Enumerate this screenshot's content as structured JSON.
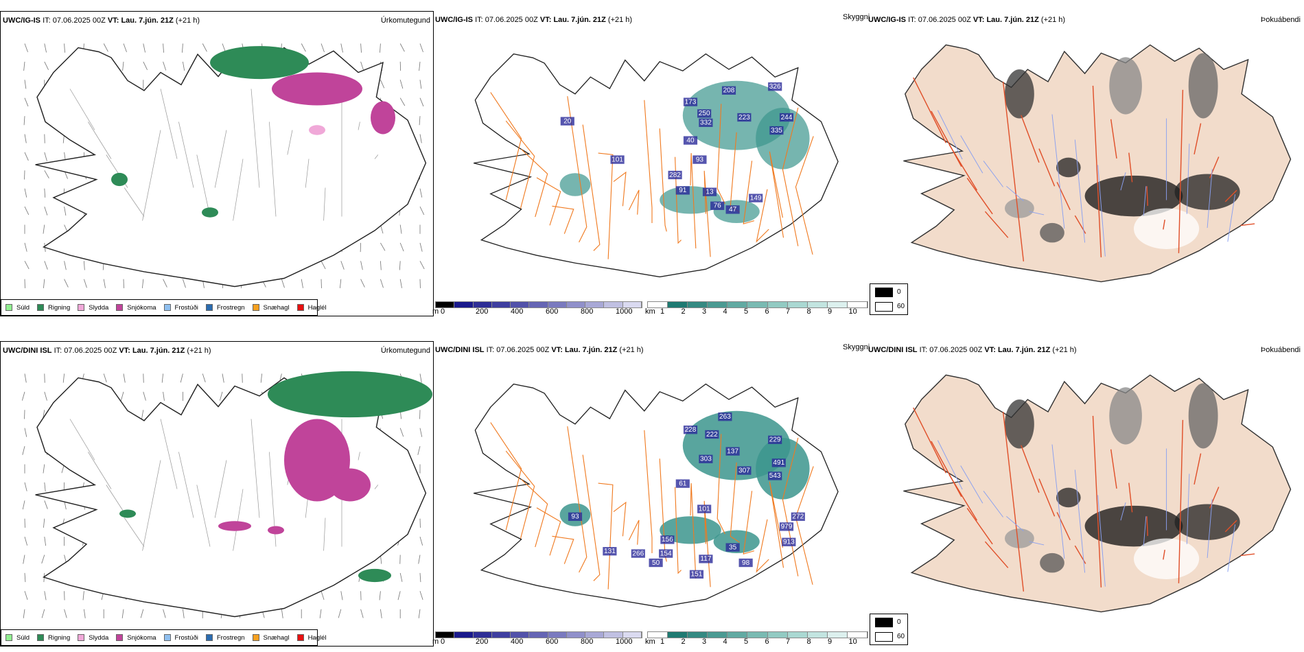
{
  "rows": [
    {
      "model": "UWC/IG-IS",
      "it_label": "IT:",
      "it": "07.06.2025 00Z",
      "vt_label": "VT:",
      "vt": "Lau. 7.jún. 21Z",
      "lead": "(+21 h)",
      "labels2": [
        "173",
        "208",
        "326",
        "250",
        "332",
        "223",
        "244",
        "335",
        "101",
        "93",
        "91",
        "13",
        "76",
        "47",
        "149",
        "20",
        "40",
        "282"
      ]
    },
    {
      "model": "UWC/DINI ISL",
      "it_label": "IT:",
      "it": "07.06.2025 00Z",
      "vt_label": "VT:",
      "vt": "Lau. 7.jún. 21Z",
      "lead": "(+21 h)",
      "labels2": [
        "263",
        "228",
        "222",
        "229",
        "137",
        "303",
        "491",
        "307",
        "543",
        "61",
        "101",
        "272",
        "979",
        "131",
        "156",
        "266",
        "154",
        "50",
        "117",
        "151",
        "98",
        "913",
        "35",
        "93"
      ]
    }
  ],
  "panel1_title": "Úrkomutegund",
  "panel2_title": "Skyggni",
  "panel3_title": "Þokuábendi",
  "precip_legend": [
    {
      "label": "Súld",
      "color": "#90ee90"
    },
    {
      "label": "Rigning",
      "color": "#2e8b57"
    },
    {
      "label": "Slydda",
      "color": "#f0a8d8"
    },
    {
      "label": "Snjókoma",
      "color": "#c0449a"
    },
    {
      "label": "Frostúði",
      "color": "#90c0f0"
    },
    {
      "label": "Frostregn",
      "color": "#2b6cb0"
    },
    {
      "label": "Snæhagl",
      "color": "#f5a020"
    },
    {
      "label": "Haglél",
      "color": "#e81010"
    }
  ],
  "elev_legend": {
    "unit": "m",
    "ticks": [
      "0",
      "200",
      "400",
      "600",
      "800",
      "1000"
    ],
    "colors": [
      "#000",
      "#1a1a8c",
      "#2e2e96",
      "#3f3fa0",
      "#5252aa",
      "#6565b4",
      "#7a7abf",
      "#9090ca",
      "#a8a8d6",
      "#c0c0e2",
      "#dadaf0"
    ]
  },
  "vis_legend": {
    "unit": "km",
    "ticks": [
      "1",
      "2",
      "3",
      "4",
      "5",
      "6",
      "7",
      "8",
      "9",
      "10"
    ],
    "colors": [
      "#fff",
      "#1f7a72",
      "#358a82",
      "#4b9a92",
      "#62aaa2",
      "#7abab2",
      "#92cac2",
      "#aad8d2",
      "#c2e4e0",
      "#dcf0ee",
      "#fff"
    ]
  },
  "fog_legend": [
    "0",
    "60"
  ]
}
